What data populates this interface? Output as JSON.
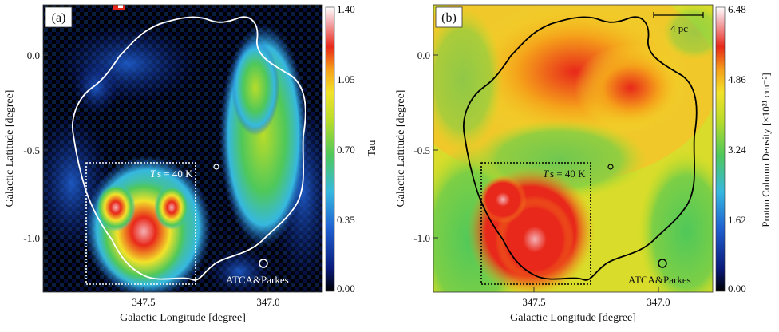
{
  "panels": [
    {
      "id": "a",
      "label": "(a)",
      "xlabel": "Galactic Longitude [degree]",
      "ylabel": "Galactic Latitude [degree]",
      "x_ticks": [
        "347.5",
        "347.0"
      ],
      "y_ticks": [
        "0.0",
        "-0.5",
        "-1.0"
      ],
      "box_label_italic": "T",
      "box_label_rest": "s = 40 K",
      "beam_label": "ATCA&Parkes",
      "colorbar_title": "Tau",
      "colorbar_ticks": [
        "1.40",
        "1.05",
        "0.70",
        "0.35",
        "0.00"
      ],
      "contour_color": "#ffffff"
    },
    {
      "id": "b",
      "label": "(b)",
      "xlabel": "Galactic Longitude [degree]",
      "ylabel": "Galactic Latitude [degree]",
      "x_ticks": [
        "347.5",
        "347.0"
      ],
      "y_ticks": [
        "0.0",
        "-0.5",
        "-1.0"
      ],
      "box_label_italic": "T",
      "box_label_rest": "s = 40 K",
      "beam_label": "ATCA&Parkes",
      "scale_bar_label": "4 pc",
      "colorbar_title": "Proton Column Density [×10²¹ cm⁻²]",
      "colorbar_ticks": [
        "6.48",
        "4.86",
        "3.24",
        "1.62",
        "0.00"
      ],
      "contour_color": "#000000"
    }
  ],
  "colormap": [
    "#000000",
    "#0a1a7a",
    "#1f5fd0",
    "#36b8e0",
    "#4fc85a",
    "#b8dc2a",
    "#f2e22a",
    "#f5a01a",
    "#e8281a",
    "#f4b0b4",
    "#ffffff"
  ]
}
